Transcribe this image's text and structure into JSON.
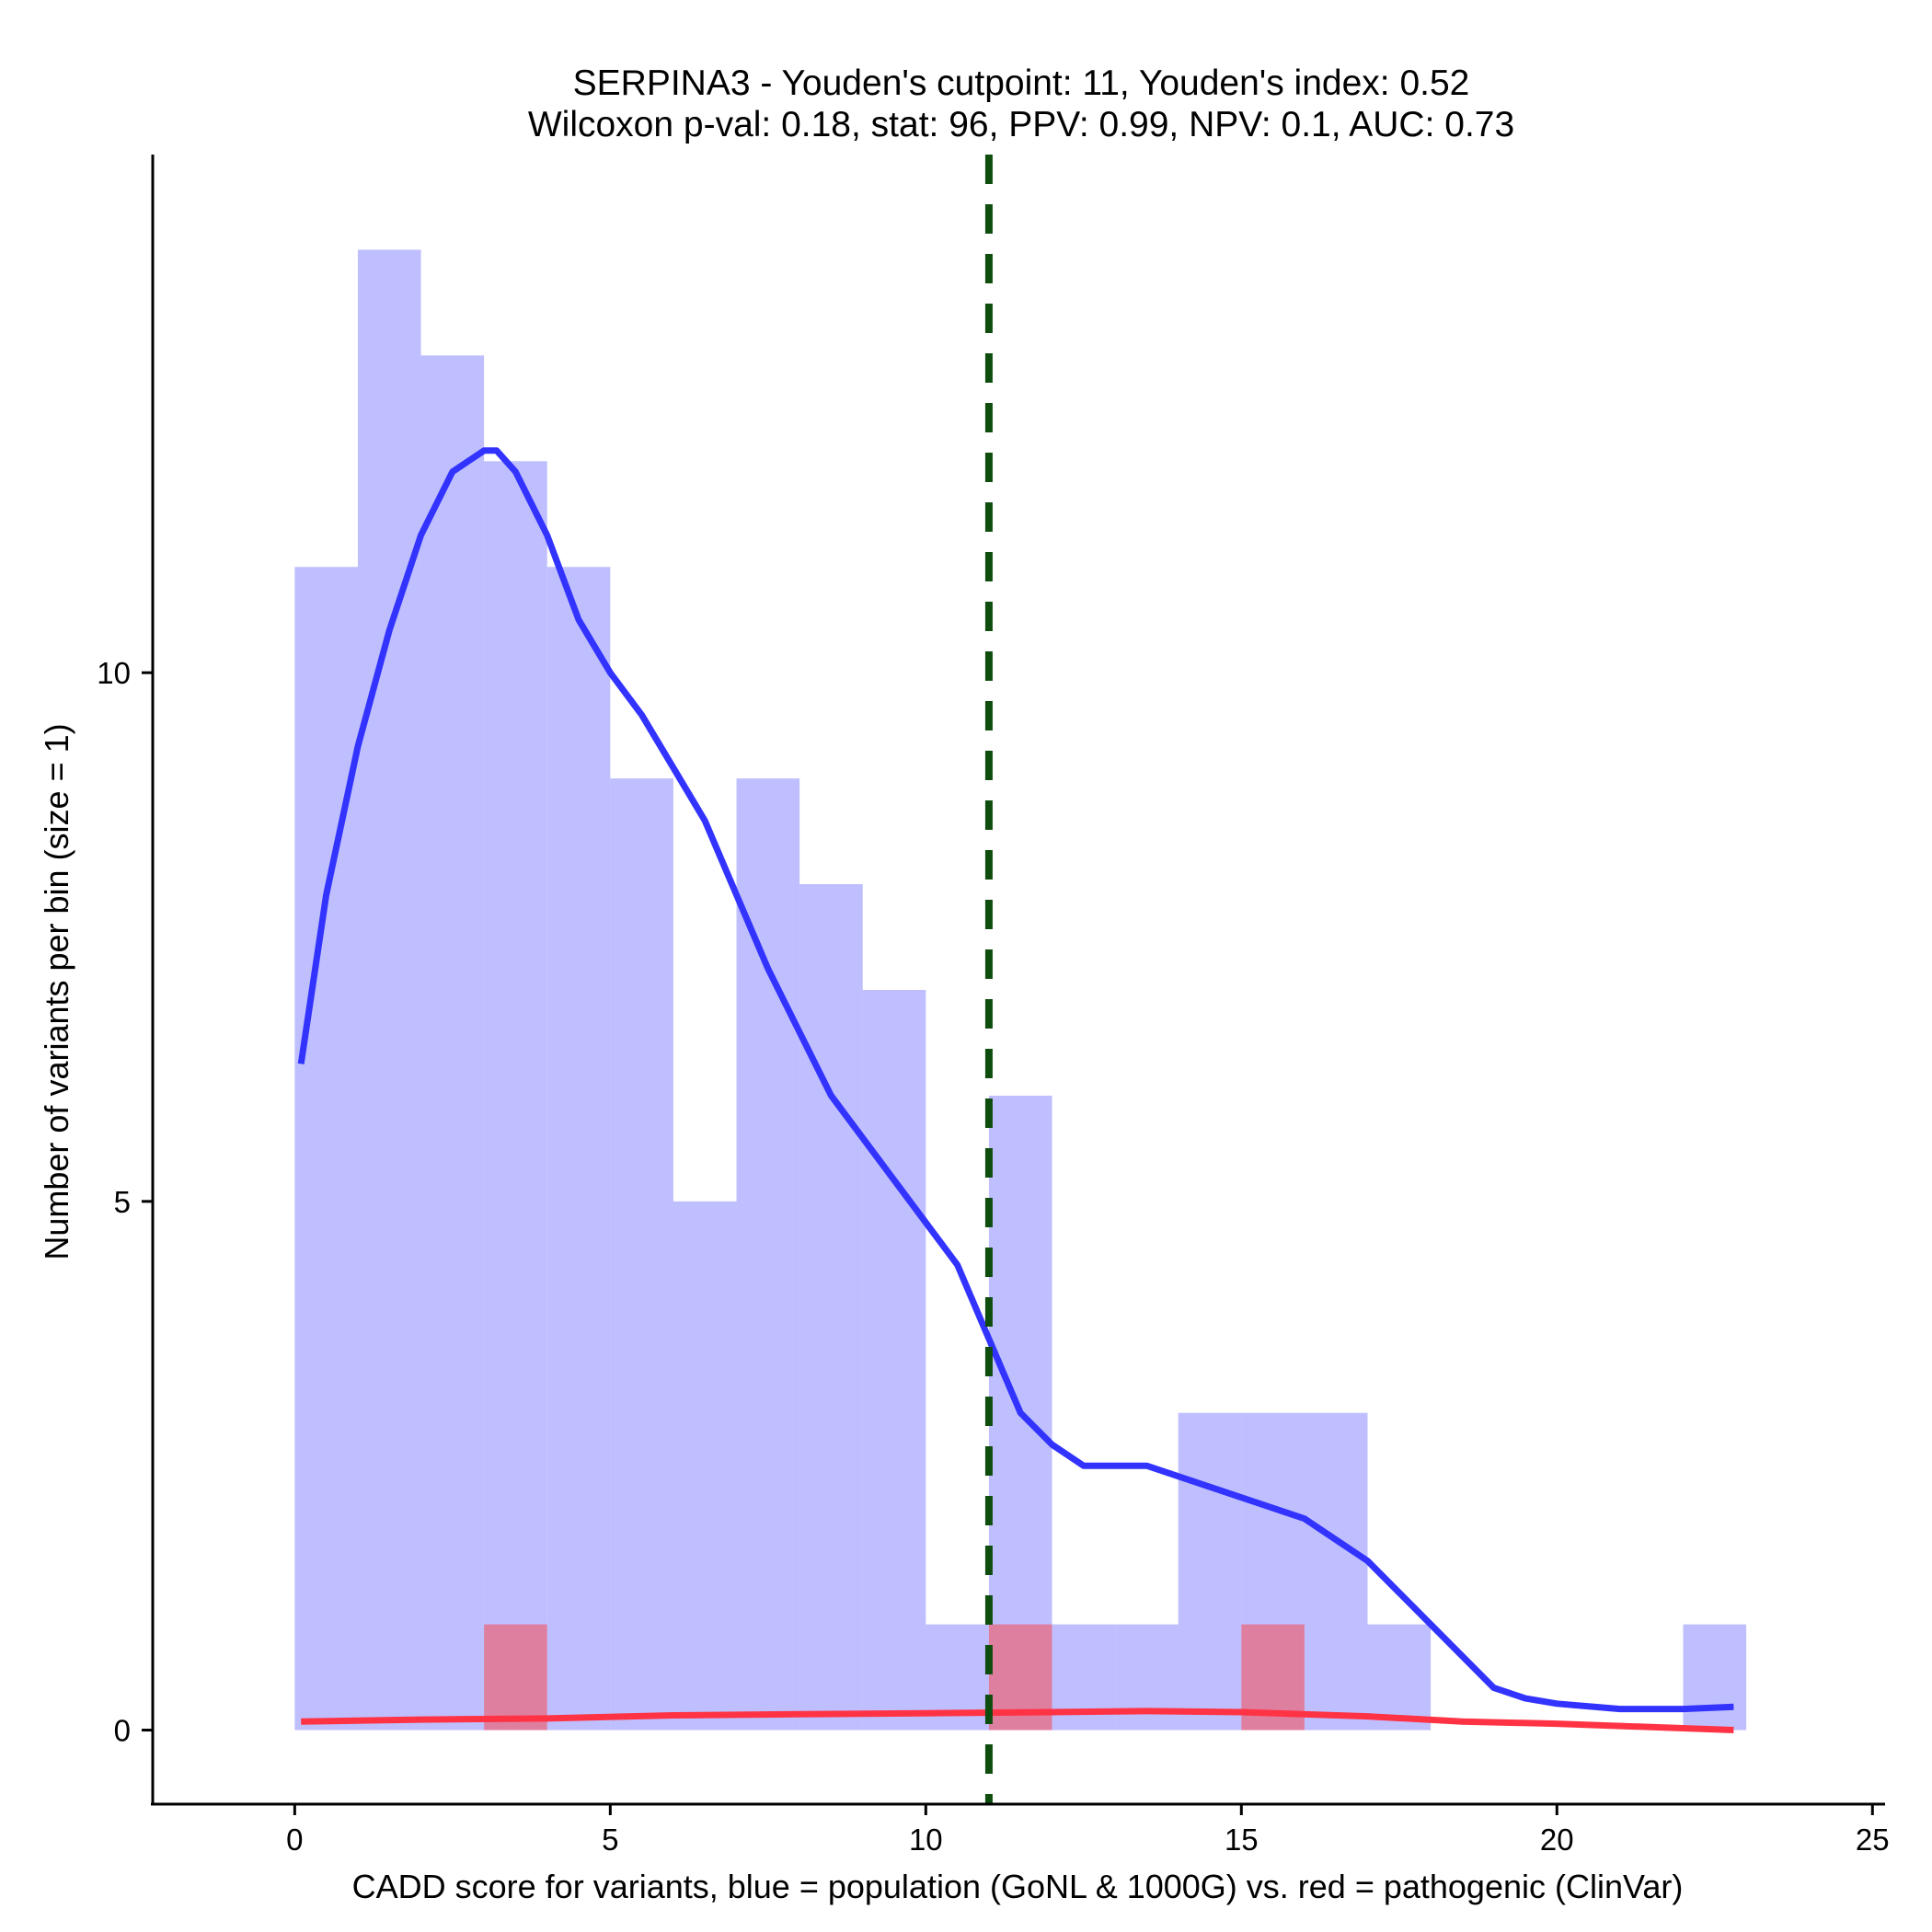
{
  "chart_data": {
    "type": "bar",
    "title": "SERPINA3 - Youden's cutpoint: 11, Youden's index: 0.52",
    "subtitle": "Wilcoxon p-val: 0.18, stat: 96, PPV: 0.99, NPV: 0.1, AUC: 0.73",
    "xlabel": "CADD score for variants, blue = population (GoNL & 1000G) vs. red = pathogenic (ClinVar)",
    "ylabel": "Number of variants per bin (size = 1)",
    "xlim": [
      -2.25,
      25.2
    ],
    "ylim": [
      -0.7,
      14.9
    ],
    "xticks": [
      0,
      5,
      10,
      15,
      20,
      25
    ],
    "yticks": [
      0,
      5,
      10
    ],
    "grid": false,
    "cutpoint": 11,
    "series": [
      {
        "name": "population (GoNL & 1000G)",
        "color": "#8080ff",
        "bins": [
          {
            "x0": 0,
            "x1": 1,
            "count": 11
          },
          {
            "x0": 1,
            "x1": 2,
            "count": 14
          },
          {
            "x0": 2,
            "x1": 3,
            "count": 13
          },
          {
            "x0": 3,
            "x1": 4,
            "count": 12
          },
          {
            "x0": 4,
            "x1": 5,
            "count": 11
          },
          {
            "x0": 5,
            "x1": 6,
            "count": 9
          },
          {
            "x0": 6,
            "x1": 7,
            "count": 5
          },
          {
            "x0": 7,
            "x1": 8,
            "count": 9
          },
          {
            "x0": 8,
            "x1": 9,
            "count": 8
          },
          {
            "x0": 9,
            "x1": 10,
            "count": 7
          },
          {
            "x0": 10,
            "x1": 11,
            "count": 1
          },
          {
            "x0": 11,
            "x1": 12,
            "count": 6
          },
          {
            "x0": 12,
            "x1": 13,
            "count": 1
          },
          {
            "x0": 13,
            "x1": 14,
            "count": 1
          },
          {
            "x0": 14,
            "x1": 15,
            "count": 3
          },
          {
            "x0": 15,
            "x1": 16,
            "count": 3
          },
          {
            "x0": 16,
            "x1": 17,
            "count": 3
          },
          {
            "x0": 17,
            "x1": 18,
            "count": 1
          },
          {
            "x0": 22,
            "x1": 23,
            "count": 1
          }
        ],
        "density_line": {
          "x": [
            0.1,
            0.5,
            1.0,
            1.5,
            2.0,
            2.5,
            3.0,
            3.2,
            3.5,
            4.0,
            4.5,
            5.0,
            5.5,
            6.0,
            6.5,
            7.0,
            7.5,
            8.0,
            8.5,
            9.0,
            9.5,
            10.0,
            10.5,
            11.0,
            11.5,
            12.0,
            12.5,
            13.0,
            13.5,
            14.0,
            14.5,
            15.0,
            15.5,
            16.0,
            16.5,
            17.0,
            17.5,
            18.0,
            18.5,
            19.0,
            19.5,
            20.0,
            21.0,
            21.5,
            22.0,
            22.8
          ],
          "y": [
            6.3,
            7.9,
            9.3,
            10.4,
            11.3,
            11.9,
            12.1,
            12.1,
            11.9,
            11.3,
            10.5,
            10.0,
            9.6,
            9.1,
            8.6,
            7.9,
            7.2,
            6.6,
            6.0,
            5.6,
            5.2,
            4.8,
            4.4,
            3.7,
            3.0,
            2.7,
            2.5,
            2.5,
            2.5,
            2.4,
            2.3,
            2.2,
            2.1,
            2.0,
            1.8,
            1.6,
            1.3,
            1.0,
            0.7,
            0.4,
            0.3,
            0.25,
            0.2,
            0.2,
            0.2,
            0.22
          ]
        }
      },
      {
        "name": "pathogenic (ClinVar)",
        "color": "#ff4040",
        "bins": [
          {
            "x0": 3,
            "x1": 4,
            "count": 1
          },
          {
            "x0": 11,
            "x1": 12,
            "count": 1
          },
          {
            "x0": 15,
            "x1": 16,
            "count": 1
          }
        ],
        "density_line": {
          "x": [
            0.1,
            2.0,
            4.0,
            6.0,
            8.0,
            10.0,
            12.0,
            13.5,
            15.0,
            17.0,
            18.5,
            20.0,
            22.8
          ],
          "y": [
            0.08,
            0.1,
            0.11,
            0.14,
            0.15,
            0.16,
            0.17,
            0.18,
            0.17,
            0.13,
            0.08,
            0.06,
            0.0
          ]
        }
      }
    ]
  }
}
